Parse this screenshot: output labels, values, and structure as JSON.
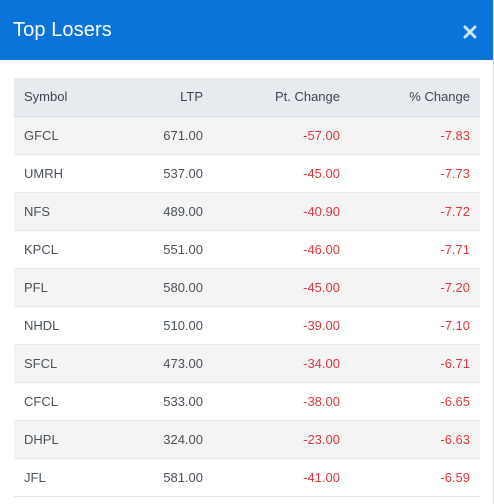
{
  "header": {
    "title": "Top Losers",
    "close_icon": "close-icon"
  },
  "table": {
    "columns": [
      "Symbol",
      "LTP",
      "Pt. Change",
      "% Change"
    ],
    "negative_color": "#e0383e",
    "rows": [
      {
        "symbol": "GFCL",
        "ltp": "671.00",
        "pt_change": "-57.00",
        "pct_change": "-7.83"
      },
      {
        "symbol": "UMRH",
        "ltp": "537.00",
        "pt_change": "-45.00",
        "pct_change": "-7.73"
      },
      {
        "symbol": "NFS",
        "ltp": "489.00",
        "pt_change": "-40.90",
        "pct_change": "-7.72"
      },
      {
        "symbol": "KPCL",
        "ltp": "551.00",
        "pt_change": "-46.00",
        "pct_change": "-7.71"
      },
      {
        "symbol": "PFL",
        "ltp": "580.00",
        "pt_change": "-45.00",
        "pct_change": "-7.20"
      },
      {
        "symbol": "NHDL",
        "ltp": "510.00",
        "pt_change": "-39.00",
        "pct_change": "-7.10"
      },
      {
        "symbol": "SFCL",
        "ltp": "473.00",
        "pt_change": "-34.00",
        "pct_change": "-6.71"
      },
      {
        "symbol": "CFCL",
        "ltp": "533.00",
        "pt_change": "-38.00",
        "pct_change": "-6.65"
      },
      {
        "symbol": "DHPL",
        "ltp": "324.00",
        "pt_change": "-23.00",
        "pct_change": "-6.63"
      },
      {
        "symbol": "JFL",
        "ltp": "581.00",
        "pt_change": "-41.00",
        "pct_change": "-6.59"
      }
    ]
  },
  "theme": {
    "header_bg": "#0a74d8",
    "header_text": "#ffffff"
  }
}
